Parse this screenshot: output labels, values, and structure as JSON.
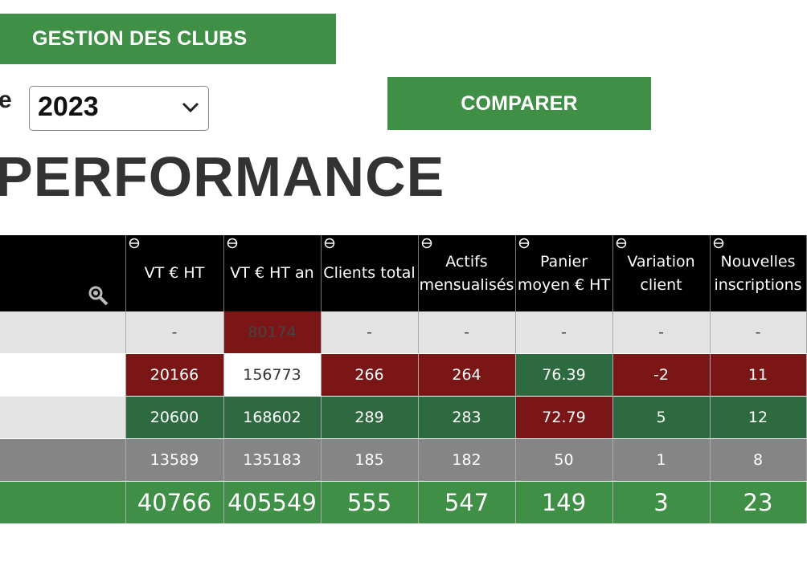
{
  "header": {
    "gestion_label": "GESTION DES CLUBS",
    "compare_label": "COMPARER",
    "year_prefix": "e",
    "year_value": "2023"
  },
  "title": "PERFORMANCE",
  "table": {
    "columns": [
      "",
      "VT € HT",
      "VT € HT an",
      "Clients total",
      "Actifs mensualisés",
      "Panier moyen € HT",
      "Variation client",
      "Nouvelles inscriptions"
    ],
    "rows": [
      {
        "cells": [
          "",
          "-",
          "80174",
          "-",
          "-",
          "-",
          "-",
          "-"
        ],
        "styles": [
          "light",
          "light",
          "red",
          "light",
          "light",
          "light",
          "light",
          "light"
        ]
      },
      {
        "cells": [
          "",
          "20166",
          "156773",
          "266",
          "264",
          "76.39",
          "-2",
          "11"
        ],
        "styles": [
          "white",
          "red",
          "white",
          "red",
          "red",
          "dgreen",
          "red",
          "red"
        ]
      },
      {
        "cells": [
          "",
          "20600",
          "168602",
          "289",
          "283",
          "72.79",
          "5",
          "12"
        ],
        "styles": [
          "light",
          "dgreen",
          "dgreen",
          "dgreen",
          "dgreen",
          "red",
          "dgreen",
          "dgreen"
        ]
      },
      {
        "cells": [
          "",
          "13589",
          "135183",
          "185",
          "182",
          "50",
          "1",
          "8"
        ],
        "styles": [
          "grey",
          "grey",
          "grey",
          "grey",
          "grey",
          "grey",
          "grey",
          "grey"
        ]
      },
      {
        "cells": [
          "",
          "40766",
          "405549",
          "555",
          "547",
          "149",
          "3",
          "23"
        ],
        "styles": [
          "total",
          "total",
          "total",
          "total",
          "total",
          "total",
          "total",
          "total"
        ]
      }
    ]
  },
  "icons": {
    "sort": "sort-icon",
    "search": "search-icon",
    "chevron": "chevron-down-icon"
  },
  "colors": {
    "accent_green": "#3f8f47",
    "dark_green": "#2e6a3f",
    "dark_red": "#7b1616",
    "grey": "#858585",
    "light_grey": "#e3e3e3",
    "header_black": "#000000"
  }
}
